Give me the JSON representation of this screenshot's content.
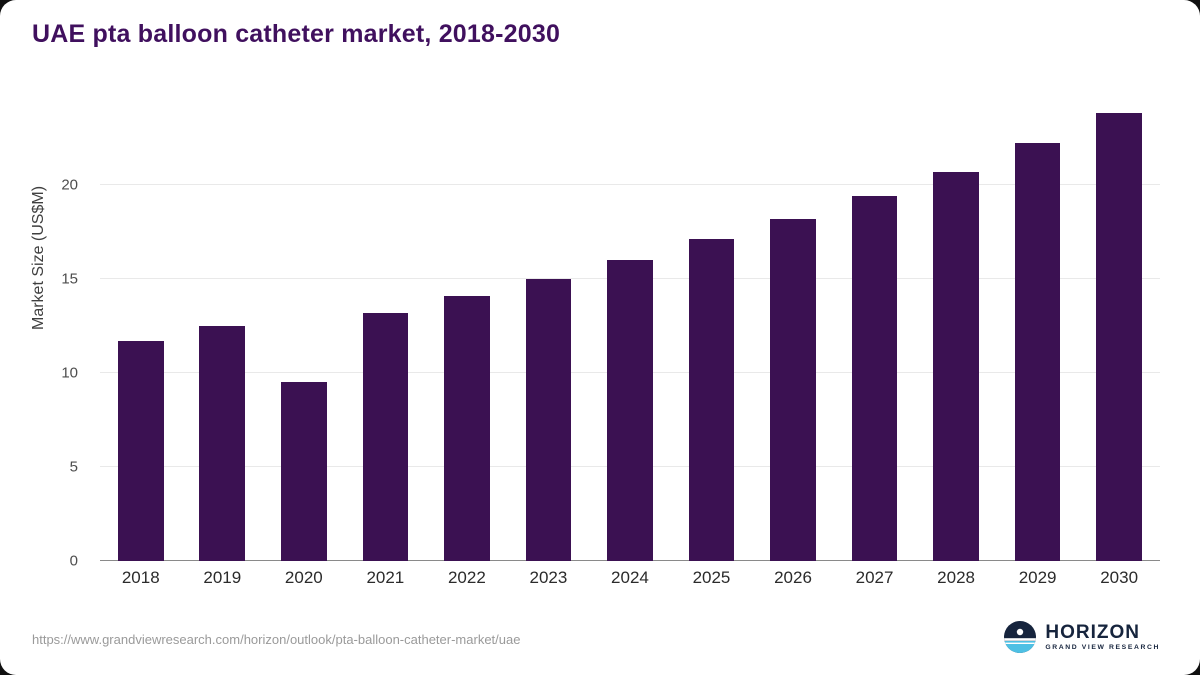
{
  "header": {
    "title": "UAE pta balloon catheter market, 2018-2030"
  },
  "chart_data": {
    "type": "bar",
    "title": "UAE pta balloon catheter market, 2018-2030",
    "categories": [
      "2018",
      "2019",
      "2020",
      "2021",
      "2022",
      "2023",
      "2024",
      "2025",
      "2026",
      "2027",
      "2028",
      "2029",
      "2030"
    ],
    "values": [
      11.7,
      12.5,
      9.5,
      13.2,
      14.1,
      15.0,
      16.0,
      17.1,
      18.2,
      19.4,
      20.7,
      22.2,
      23.8
    ],
    "xlabel": "",
    "ylabel": "Market Size (US$M)",
    "yticks": [
      0,
      5,
      10,
      15,
      20
    ],
    "ylim": [
      0,
      24.5
    ],
    "grid": "horizontal",
    "legend": "none",
    "bar_color": "#3b1152"
  },
  "colors": {
    "title": "#40105e",
    "bar": "#3b1152",
    "brand_navy": "#16243d",
    "brand_blue": "#4ec0e4"
  },
  "footer": {
    "source_url": "https://www.grandviewresearch.com/horizon/outlook/pta-balloon-catheter-market/uae",
    "brand_name": "HORIZON",
    "brand_tagline": "GRAND VIEW RESEARCH"
  }
}
